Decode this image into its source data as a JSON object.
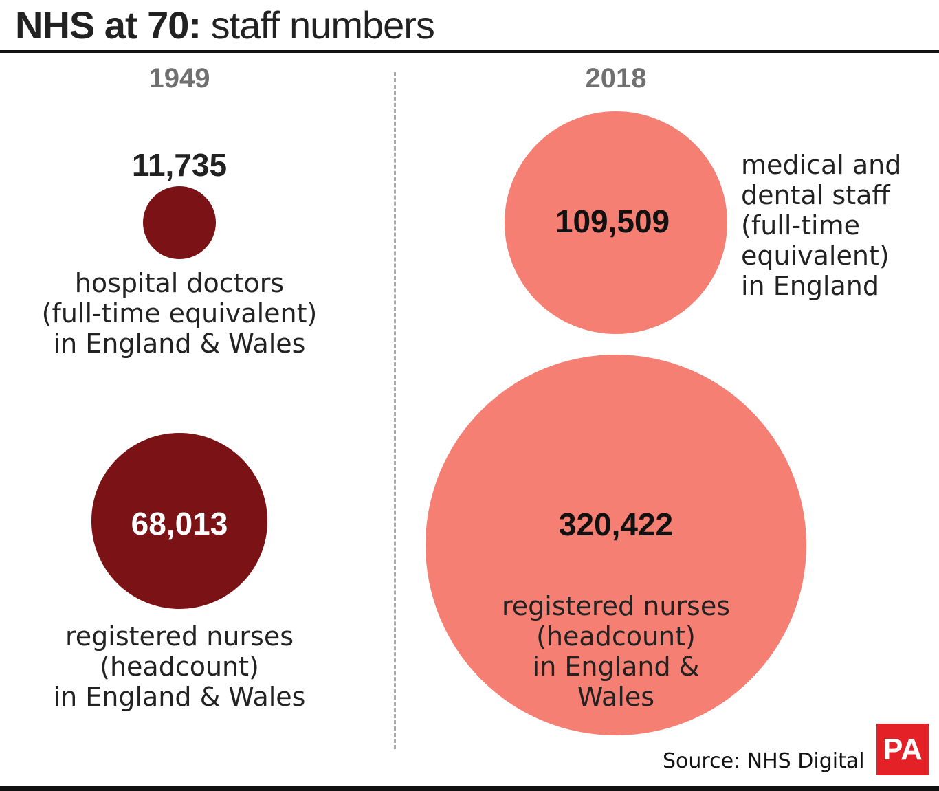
{
  "title": {
    "bold": "NHS at 70:",
    "rest": "staff numbers"
  },
  "source": "Source: NHS Digital",
  "logo_text": "PA",
  "colors": {
    "1949": "#7a1216",
    "2018": "#f47f72"
  },
  "chart_data": {
    "type": "bubble",
    "columns": [
      "1949",
      "2018"
    ],
    "bubbles": [
      {
        "year": "1949",
        "value": 11735,
        "value_label": "11,735",
        "label": "hospital doctors\n(full-time equivalent)\nin England & Wales"
      },
      {
        "year": "1949",
        "value": 68013,
        "value_label": "68,013",
        "label": "registered nurses\n(headcount)\nin England & Wales"
      },
      {
        "year": "2018",
        "value": 109509,
        "value_label": "109,509",
        "label": "medical and\ndental staff\n(full-time\nequivalent)\nin England"
      },
      {
        "year": "2018",
        "value": 320422,
        "value_label": "320,422",
        "label": "registered nurses\n(headcount)\nin England &\nWales"
      }
    ]
  }
}
